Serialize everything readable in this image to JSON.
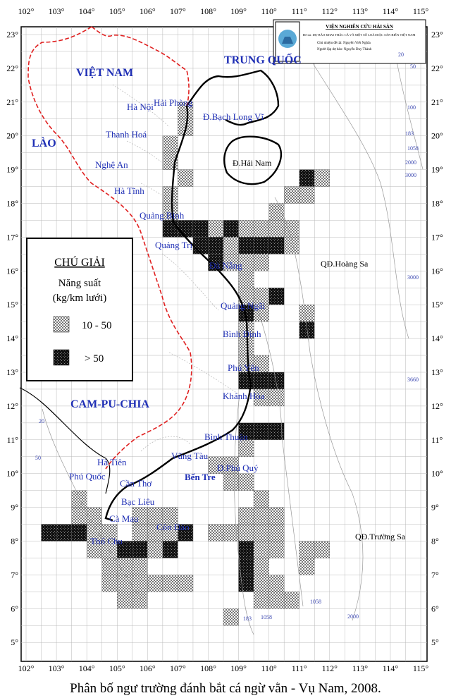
{
  "header": {
    "institute": "VIỆN NGHIÊN CỨU HẢI SẢN",
    "project": "Đề tài: DỰ BÁO KHAI THÁC CÁ VÀ MỘT SỐ LOÀI ĐẶC SẢN BIỂN VIỆT NAM",
    "leader": "Chủ nhiệm đề tài: Nguyễn Viết Nghĩa",
    "forecaster": "Người lập dự báo: Nguyễn Duy Thành"
  },
  "countries": [
    "VIỆT NAM",
    "TRUNG QUỐC",
    "LÀO",
    "CAM-PU-CHIA"
  ],
  "places": [
    "Hà Nội",
    "Hải Phòng",
    "Thanh Hoá",
    "Nghệ An",
    "Hà Tĩnh",
    "Quảng Bình",
    "Quảng Trị",
    "Đà Nẵng",
    "Quảng Ngãi",
    "Bình Định",
    "Phú Yên",
    "Khánh Hòa",
    "Bình Thuận",
    "Vũng Tàu",
    "Bến Tre",
    "Cần Thơ",
    "Bạc Liêu",
    "Cà Mau",
    "Hà Tiên",
    "Phú Quốc",
    "Côn Đảo",
    "Thổ Chu",
    "Đ.Bạch Long Vĩ",
    "Đ.Hải Nam",
    "QĐ.Hoàng Sa",
    "QĐ.Trường Sa",
    "Đ.Phú Quý"
  ],
  "depths": [
    20,
    50,
    100,
    183,
    1058,
    2000,
    3000,
    3000,
    3660,
    20,
    50,
    1058,
    2000,
    183,
    1058
  ],
  "legend": {
    "title": "CHÚ GIẢI",
    "subtitle_1": "Năng suất",
    "subtitle_2": "(kg/km lưới)",
    "items": [
      "10 - 50",
      "> 50"
    ]
  },
  "lon_labels": [
    "102°",
    "103°",
    "104°",
    "105°",
    "106°",
    "107°",
    "108°",
    "109°",
    "110°",
    "111°",
    "112°",
    "113°",
    "114°",
    "115°"
  ],
  "lat_labels": [
    "23°",
    "22°",
    "21°",
    "20°",
    "19°",
    "18°",
    "17°",
    "16°",
    "15°",
    "14°",
    "13°",
    "12°",
    "11°",
    "10°",
    "9°",
    "8°",
    "7°",
    "6°",
    "5°"
  ],
  "catch_cells": [
    [
      107,
      20.5,
      0
    ],
    [
      107,
      20,
      0
    ],
    [
      106.5,
      19.5,
      0
    ],
    [
      106.5,
      19,
      0
    ],
    [
      107,
      18.5,
      0
    ],
    [
      111,
      18.5,
      1
    ],
    [
      111.5,
      18.5,
      0
    ],
    [
      106.5,
      18,
      0
    ],
    [
      110.5,
      18,
      0
    ],
    [
      111,
      18,
      0
    ],
    [
      106.5,
      17.5,
      0
    ],
    [
      110,
      17.5,
      0
    ],
    [
      106.5,
      17,
      1
    ],
    [
      107,
      17,
      1
    ],
    [
      107.5,
      17,
      1
    ],
    [
      108,
      17,
      0
    ],
    [
      108.5,
      17,
      1
    ],
    [
      109,
      17,
      0
    ],
    [
      109.5,
      17,
      0
    ],
    [
      110,
      17,
      0
    ],
    [
      110.5,
      17,
      0
    ],
    [
      107.5,
      16.5,
      1
    ],
    [
      108,
      16.5,
      1
    ],
    [
      108.5,
      16.5,
      0
    ],
    [
      109,
      16.5,
      1
    ],
    [
      109.5,
      16.5,
      1
    ],
    [
      110,
      16.5,
      1
    ],
    [
      110.5,
      16.5,
      0
    ],
    [
      108,
      16,
      1
    ],
    [
      108.5,
      16,
      0
    ],
    [
      109,
      16,
      0
    ],
    [
      109.5,
      16,
      0
    ],
    [
      109,
      15.5,
      0
    ],
    [
      109,
      15,
      0
    ],
    [
      109.5,
      15,
      0
    ],
    [
      110,
      15,
      1
    ],
    [
      109,
      14.5,
      1
    ],
    [
      109.5,
      14.5,
      0
    ],
    [
      111,
      14.5,
      0
    ],
    [
      109,
      14,
      0
    ],
    [
      111,
      14,
      1
    ],
    [
      109,
      13.5,
      0
    ],
    [
      109,
      13,
      0
    ],
    [
      109.5,
      13,
      0
    ],
    [
      109,
      12.5,
      1
    ],
    [
      109.5,
      12.5,
      1
    ],
    [
      110,
      12.5,
      1
    ],
    [
      109.5,
      12,
      0
    ],
    [
      110,
      12,
      0
    ],
    [
      109,
      11,
      1
    ],
    [
      109.5,
      11,
      1
    ],
    [
      110,
      11,
      1
    ],
    [
      109,
      10.5,
      0
    ],
    [
      108,
      10,
      0
    ],
    [
      108.5,
      10,
      0
    ],
    [
      108.5,
      9.5,
      0
    ],
    [
      109,
      9.5,
      0
    ],
    [
      103.5,
      9,
      0
    ],
    [
      109.5,
      9,
      0
    ],
    [
      103.5,
      8.5,
      0
    ],
    [
      104,
      8.5,
      0
    ],
    [
      105.5,
      8.5,
      0
    ],
    [
      106,
      8.5,
      0
    ],
    [
      106.5,
      8.5,
      0
    ],
    [
      109,
      8.5,
      0
    ],
    [
      109.5,
      8.5,
      0
    ],
    [
      110,
      8.5,
      0
    ],
    [
      102.5,
      8,
      1
    ],
    [
      103,
      8,
      1
    ],
    [
      103.5,
      8,
      1
    ],
    [
      104,
      8,
      0
    ],
    [
      104.5,
      8,
      0
    ],
    [
      105.5,
      8,
      0
    ],
    [
      106,
      8,
      0
    ],
    [
      106.5,
      8,
      0
    ],
    [
      107,
      8,
      1
    ],
    [
      108,
      8,
      0
    ],
    [
      108.5,
      8,
      0
    ],
    [
      109,
      8,
      0
    ],
    [
      109.5,
      8,
      0
    ],
    [
      110,
      8,
      0
    ],
    [
      104,
      7.5,
      0
    ],
    [
      104.5,
      7.5,
      0
    ],
    [
      105,
      7.5,
      1
    ],
    [
      105.5,
      7.5,
      1
    ],
    [
      106,
      7.5,
      0
    ],
    [
      106.5,
      7.5,
      1
    ],
    [
      109,
      7.5,
      1
    ],
    [
      109.5,
      7.5,
      0
    ],
    [
      110,
      7.5,
      0
    ],
    [
      111,
      7.5,
      0
    ],
    [
      111.5,
      7.5,
      0
    ],
    [
      104.5,
      7,
      0
    ],
    [
      105,
      7,
      0
    ],
    [
      105.5,
      7,
      0
    ],
    [
      109,
      7,
      1
    ],
    [
      109.5,
      7,
      0
    ],
    [
      111,
      7,
      0
    ],
    [
      104.5,
      6.5,
      0
    ],
    [
      105,
      6.5,
      0
    ],
    [
      105.5,
      6.5,
      0
    ],
    [
      106,
      6.5,
      0
    ],
    [
      106.5,
      6.5,
      0
    ],
    [
      107,
      6.5,
      0
    ],
    [
      109,
      6.5,
      1
    ],
    [
      109.5,
      6.5,
      0
    ],
    [
      110,
      6.5,
      0
    ],
    [
      105,
      6,
      0
    ],
    [
      105.5,
      6,
      0
    ],
    [
      109.5,
      6,
      0
    ],
    [
      110,
      6,
      0
    ],
    [
      110.5,
      6,
      0
    ],
    [
      108.5,
      5.5,
      0
    ]
  ],
  "caption": "Phân bố ngư trường đánh bắt cá ngừ vằn - Vụ Nam, 2008."
}
